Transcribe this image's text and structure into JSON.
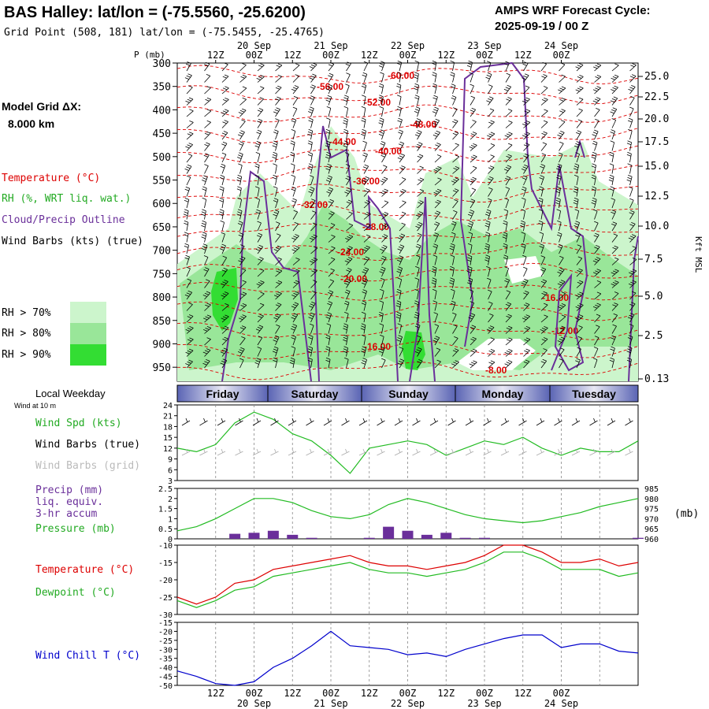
{
  "header": {
    "title": "BAS Halley:  lat/lon = (-75.5560, -25.6200)",
    "subtitle": "Grid Point (508, 181) lat/lon = (-75.5455, -25.4765)",
    "cycle_line1": "AMPS WRF Forecast Cycle:",
    "cycle_line2": "2025-09-19 / 00  Z"
  },
  "sidebar": {
    "model_grid_line1": "Model Grid ΔX:",
    "model_grid_line2": "8.000 km",
    "temperature": "Temperature (°C)",
    "rh": "RH (%, WRT liq. wat.)",
    "cloud": "Cloud/Precip Outline",
    "windbarbs": "Wind Barbs (kts) (true)",
    "rh70": "RH > 70%",
    "rh80": "RH > 80%",
    "rh90": "RH > 90%",
    "local_weekday": "Local Weekday",
    "wind_10m": "Wind at 10 m",
    "wind_spd": "Wind Spd (kts)",
    "wind_barbs_true": "Wind Barbs (true)",
    "wind_barbs_grid": "Wind Barbs (grid)",
    "precip1": "Precip (mm)",
    "precip2": "liq. equiv.",
    "precip3": "3-hr accum",
    "pressure": "Pressure (mb)",
    "temp_panel": "Temperature (°C)",
    "dewpoint": "Dewpoint (°C)",
    "windchill": "Wind Chill T (°C)"
  },
  "colors": {
    "temperature": "#dd0000",
    "rh70": "#ccf5cc",
    "rh80": "#99e699",
    "rh90": "#33dd33",
    "cloud": "#6a2f9a",
    "green_line": "#22bb22",
    "windchill": "#0000cc",
    "precip": "#6a2f9a"
  },
  "chart_data": [
    {
      "type": "heatmap",
      "name": "cross-section",
      "ylabel": "P (mb)",
      "ylabel_right": "Kft MSL",
      "pressure_ticks": [
        "300",
        "350",
        "400",
        "450",
        "500",
        "550",
        "600",
        "650",
        "700",
        "750",
        "800",
        "850",
        "900",
        "950"
      ],
      "kft_ticks": [
        "25.0",
        "22.5",
        "20.0",
        "17.5",
        "15.0",
        "12.5",
        "10.0",
        "7.5",
        "5.0",
        "2.5",
        "0.13"
      ],
      "top_time_labels": [
        "12Z",
        "00Z",
        "12Z",
        "00Z",
        "12Z",
        "00Z",
        "12Z",
        "00Z",
        "12Z",
        "00Z"
      ],
      "top_date_labels": [
        "20 Sep",
        "21 Sep",
        "22 Sep",
        "23 Sep",
        "24 Sep"
      ],
      "isotherm_labels": [
        "-60.00",
        "-56.00",
        "-52.00",
        "-48.00",
        "-44.00",
        "-40.00",
        "-36.00",
        "-32.00",
        "-28.00",
        "-24.00",
        "-20.00",
        "-16.00",
        "-16.00",
        "-12.00",
        "-8.00"
      ]
    },
    {
      "type": "table",
      "name": "weekday-bar",
      "days": [
        "Friday",
        "Saturday",
        "Sunday",
        "Monday",
        "Tuesday"
      ]
    },
    {
      "type": "line",
      "name": "wind-speed",
      "ylabel": "Wind Spd (kts)",
      "ylim": [
        3,
        24
      ],
      "yticks": [
        "24",
        "21",
        "18",
        "15",
        "12",
        "9",
        "6",
        "3"
      ],
      "x_hours": [
        0,
        6,
        12,
        18,
        24,
        30,
        36,
        42,
        48,
        54,
        60,
        66,
        72,
        78,
        84,
        90,
        96,
        102,
        108,
        114,
        120,
        126,
        132,
        138,
        144
      ],
      "values": [
        12,
        11,
        13,
        19,
        22,
        20,
        16,
        14,
        10,
        5,
        12,
        13,
        14,
        13,
        10,
        12,
        14,
        13,
        15,
        12,
        10,
        12,
        11,
        11,
        14
      ]
    },
    {
      "type": "bar",
      "name": "precip-pressure",
      "ylim_precip": [
        0,
        2.5
      ],
      "precip_ticks": [
        "2.5",
        "2",
        "1.5",
        "1",
        "0.5",
        "0"
      ],
      "pressure_ticks": [
        "985",
        "980",
        "975",
        "970",
        "965",
        "960"
      ],
      "ylim_pressure": [
        960,
        985
      ],
      "pressure_unit": "(mb)",
      "x_hours": [
        0,
        6,
        12,
        18,
        24,
        30,
        36,
        42,
        48,
        54,
        60,
        66,
        72,
        78,
        84,
        90,
        96,
        102,
        108,
        114,
        120,
        126,
        132,
        138,
        144
      ],
      "precip_values": [
        0,
        0,
        0,
        0.25,
        0.3,
        0.4,
        0.2,
        0.05,
        0,
        0,
        0.05,
        0.6,
        0.4,
        0.2,
        0.3,
        0.05,
        0.05,
        0,
        0,
        0,
        0,
        0,
        0,
        0,
        0.05
      ],
      "pressure_values": [
        964,
        966,
        970,
        975,
        980,
        980,
        978,
        974,
        971,
        970,
        972,
        977,
        980,
        978,
        975,
        972,
        970,
        969,
        968,
        969,
        971,
        973,
        976,
        978,
        980
      ]
    },
    {
      "type": "line",
      "name": "temperature-dewpoint",
      "ylim": [
        -30,
        -10
      ],
      "yticks": [
        "-10",
        "-15",
        "-20",
        "-25",
        "-30"
      ],
      "x_hours": [
        0,
        6,
        12,
        18,
        24,
        30,
        36,
        42,
        48,
        54,
        60,
        66,
        72,
        78,
        84,
        90,
        96,
        102,
        108,
        114,
        120,
        126,
        132,
        138,
        144
      ],
      "series": [
        {
          "name": "Temperature (°C)",
          "values": [
            -25,
            -27,
            -25,
            -21,
            -20,
            -17,
            -16,
            -15,
            -14,
            -13,
            -15,
            -16,
            -16,
            -17,
            -16,
            -15,
            -13,
            -10,
            -10,
            -12,
            -15,
            -15,
            -14,
            -16,
            -15
          ]
        },
        {
          "name": "Dewpoint (°C)",
          "values": [
            -26,
            -28,
            -26,
            -23,
            -22,
            -19,
            -18,
            -17,
            -16,
            -15,
            -17,
            -18,
            -18,
            -19,
            -18,
            -17,
            -15,
            -12,
            -12,
            -14,
            -17,
            -17,
            -17,
            -19,
            -18
          ]
        }
      ]
    },
    {
      "type": "line",
      "name": "wind-chill",
      "ylim": [
        -50,
        -15
      ],
      "yticks": [
        "-15",
        "-20",
        "-25",
        "-30",
        "-35",
        "-40",
        "-45",
        "-50"
      ],
      "x_hours": [
        0,
        6,
        12,
        18,
        24,
        30,
        36,
        42,
        48,
        54,
        60,
        66,
        72,
        78,
        84,
        90,
        96,
        102,
        108,
        114,
        120,
        126,
        132,
        138,
        144
      ],
      "values": [
        -42,
        -45,
        -49,
        -50,
        -48,
        -40,
        -35,
        -28,
        -20,
        -28,
        -29,
        -30,
        -33,
        -32,
        -34,
        -30,
        -27,
        -24,
        -22,
        -22,
        -29,
        -27,
        -27,
        -31,
        -32
      ]
    }
  ]
}
